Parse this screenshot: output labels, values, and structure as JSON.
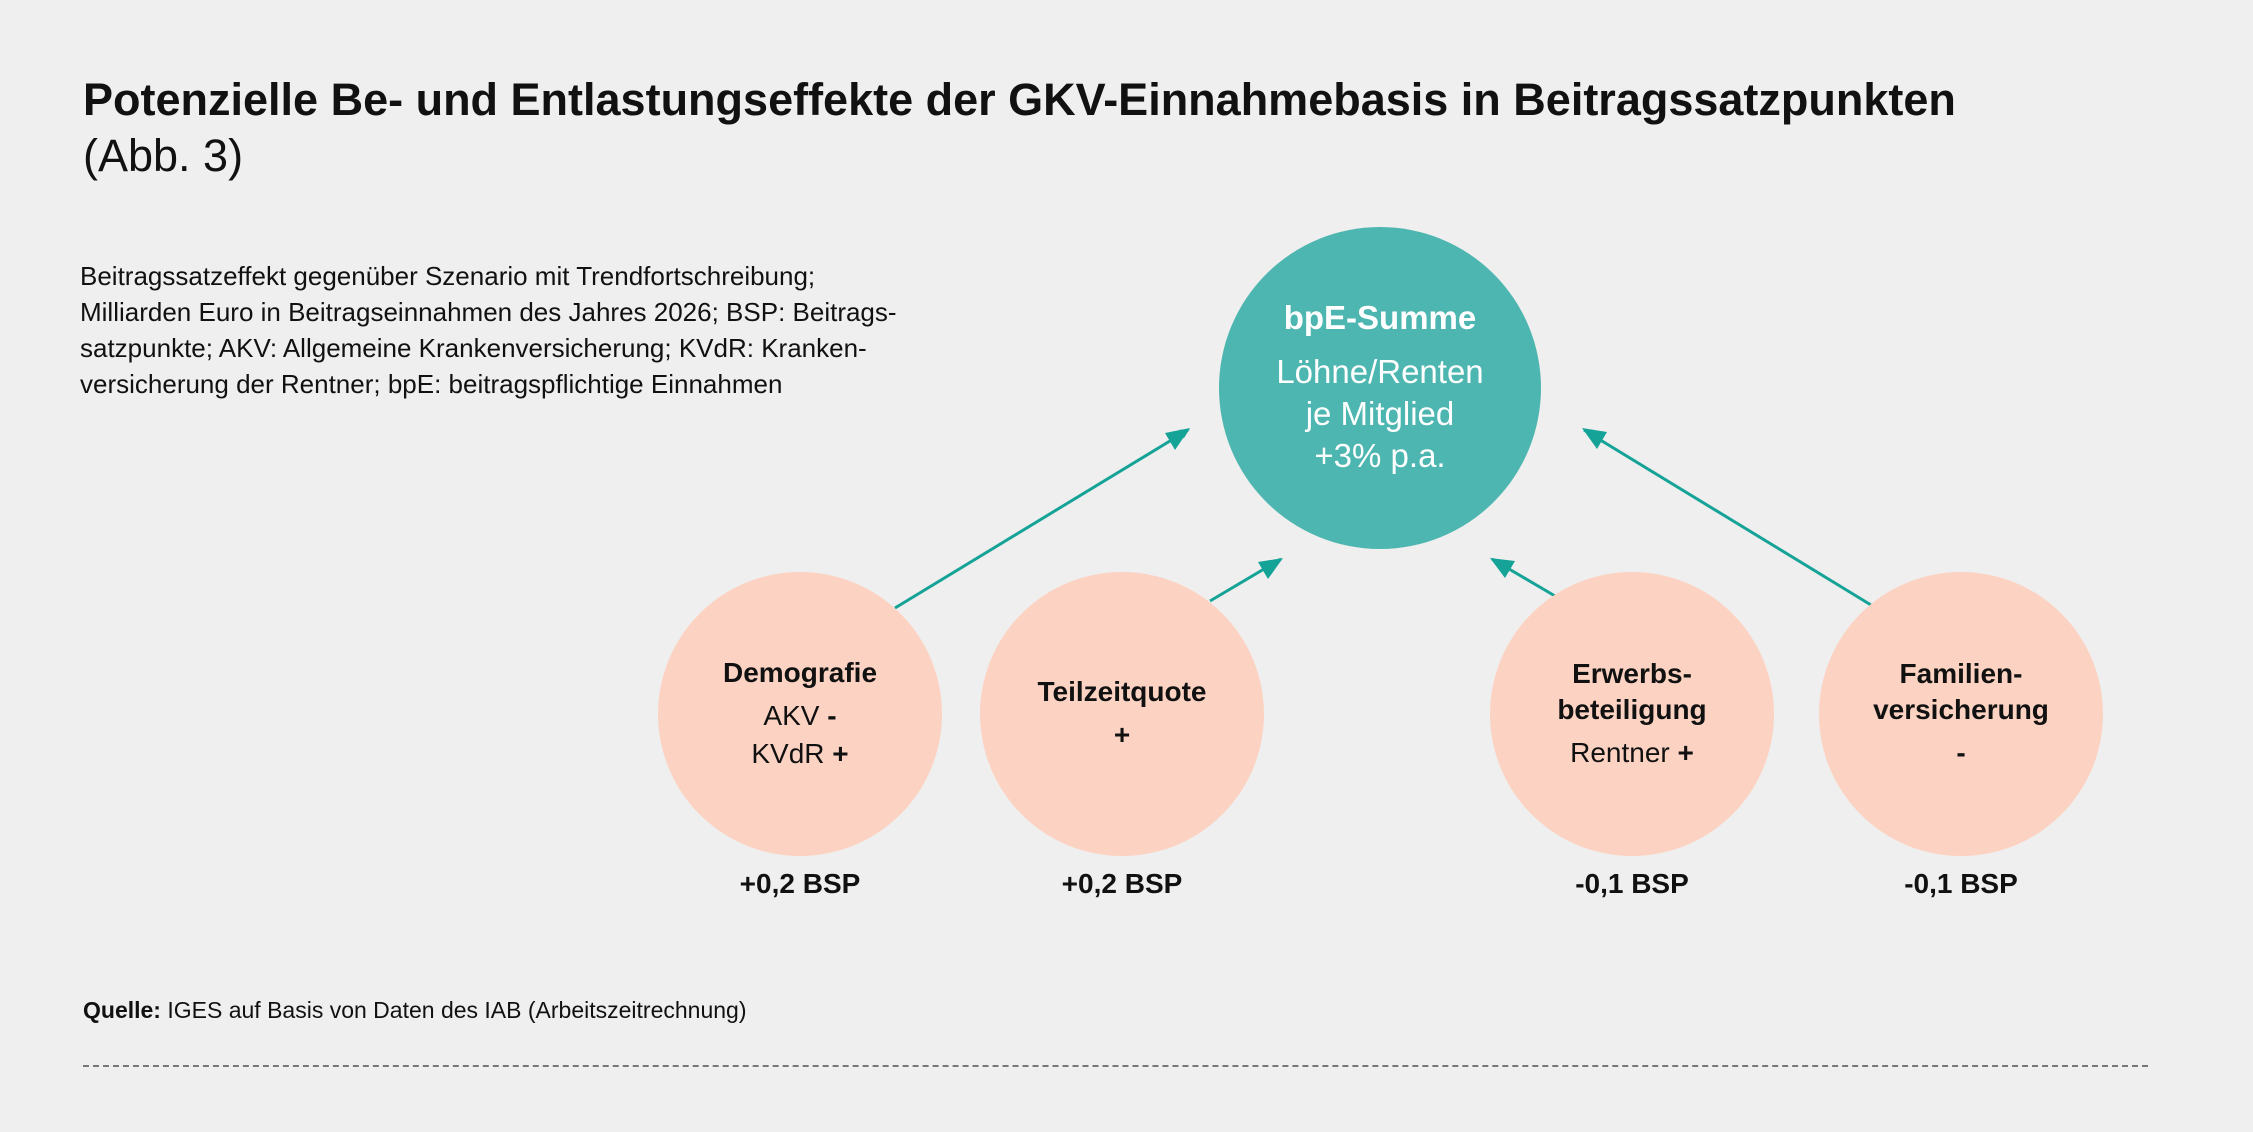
{
  "title": "Potenzielle Be- und Entlastungseffekte der GKV-Einnahmebasis in Beitragssatzpunkten",
  "subtitle": "(Abb. 3)",
  "description": [
    "Beitragssatzeffekt gegenüber Szenario mit Trendfortschreibung;",
    "Milliarden Euro in Beitragseinnahmen des Jahres 2026; BSP: Beitrags-",
    "satzpunkte; AKV: Allgemeine Krankenversicherung; KVdR: Kranken-",
    "versicherung der Rentner; bpE: beitragspflichtige Einnahmen"
  ],
  "center": {
    "heading": "bpE-Summe",
    "lines": [
      "Löhne/Renten",
      "je Mitglied",
      "+3% p.a."
    ]
  },
  "factors": [
    {
      "heading": [
        "Demografie"
      ],
      "lines": [
        [
          "AKV ",
          "-"
        ],
        [
          "KVdR ",
          "+"
        ]
      ],
      "effect": "+0,2 BSP"
    },
    {
      "heading": [
        "Teilzeitquote"
      ],
      "lines": [
        [
          "",
          "+"
        ]
      ],
      "effect": "+0,2 BSP"
    },
    {
      "heading": [
        "Erwerbs-",
        "beteiligung"
      ],
      "lines": [
        [
          "Rentner ",
          "+"
        ]
      ],
      "effect": "-0,1 BSP"
    },
    {
      "heading": [
        "Familien-",
        "versicherung"
      ],
      "lines": [
        [
          "",
          "-"
        ]
      ],
      "effect": "-0,1 BSP"
    }
  ],
  "source": {
    "label": "Quelle:",
    "text": " IGES auf Basis von Daten des IAB (Arbeitszeitrechnung)"
  },
  "colors": {
    "center": "#4db6b0",
    "factor": "#fcd3c2",
    "arrow": "#16a397",
    "background": "#efefef"
  }
}
